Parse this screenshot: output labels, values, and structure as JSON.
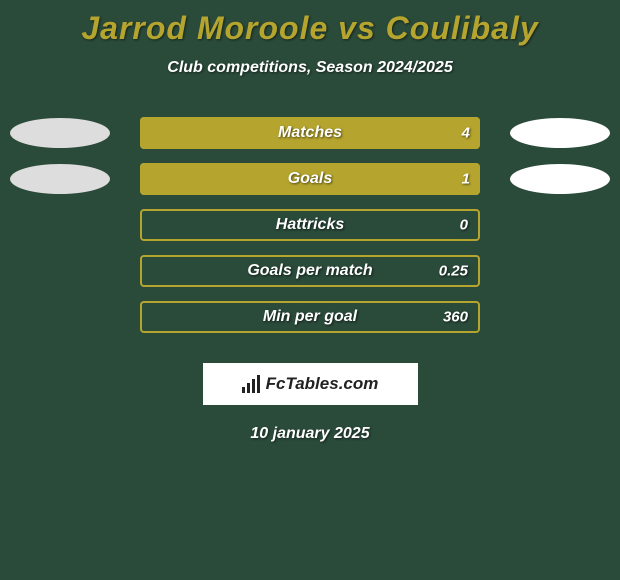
{
  "background_color": "#2a4a3a",
  "title": {
    "text": "Jarrod Moroole vs Coulibaly",
    "color": "#b5a52e",
    "fontsize": 32
  },
  "subtitle": {
    "text": "Club competitions, Season 2024/2025",
    "color": "#ffffff",
    "fontsize": 16
  },
  "bar_colors": {
    "fill": "#b5a52e",
    "empty_border": "#b5a52e",
    "text": "#ffffff"
  },
  "ellipse_colors": {
    "left": "#dddddd",
    "right": "#ffffff"
  },
  "stats": [
    {
      "label": "Matches",
      "value": "4",
      "fill_pct": 100,
      "show_ellipses": true
    },
    {
      "label": "Goals",
      "value": "1",
      "fill_pct": 100,
      "show_ellipses": true
    },
    {
      "label": "Hattricks",
      "value": "0",
      "fill_pct": 0,
      "show_ellipses": false
    },
    {
      "label": "Goals per match",
      "value": "0.25",
      "fill_pct": 0,
      "show_ellipses": false
    },
    {
      "label": "Min per goal",
      "value": "360",
      "fill_pct": 0,
      "show_ellipses": false
    }
  ],
  "logo": {
    "text": "FcTables.com",
    "background": "#ffffff",
    "text_color": "#222222"
  },
  "date": {
    "text": "10 january 2025",
    "color": "#ffffff"
  }
}
